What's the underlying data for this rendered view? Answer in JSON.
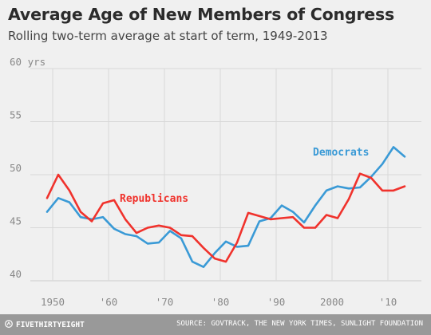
{
  "title": "Average Age of New Members of Congress",
  "subtitle": "Rolling two-term average at start of term, 1949-2013",
  "footer": {
    "brand": "FIVETHIRTYEIGHT",
    "source": "SOURCE: GOVTRACK, THE NEW YORK TIMES, SUNLIGHT FOUNDATION"
  },
  "colors": {
    "democrats": "#3a9ad6",
    "republicans": "#f0322c",
    "grid": "#d8d8d8",
    "background": "#f0f0f0",
    "footer": "#999999"
  },
  "chart_data": {
    "type": "line",
    "title": "Average Age of New Members of Congress",
    "subtitle": "Rolling two-term average at start of term, 1949-2013",
    "xlabel": "",
    "ylabel": "",
    "xlim": [
      1946,
      2016
    ],
    "ylim": [
      40,
      60
    ],
    "yticks": [
      40,
      45,
      50,
      55,
      60
    ],
    "ytick_labels": [
      "40",
      "45",
      "50",
      "55",
      "60 yrs"
    ],
    "xticks": [
      1950,
      1960,
      1970,
      1980,
      1990,
      2000,
      2010
    ],
    "xtick_labels": [
      "1950",
      "'60",
      "'70",
      "'80",
      "'90",
      "2000",
      "'10"
    ],
    "grid": true,
    "legend": "inline labels",
    "x": [
      1949,
      1951,
      1953,
      1955,
      1957,
      1959,
      1961,
      1963,
      1965,
      1967,
      1969,
      1971,
      1973,
      1975,
      1977,
      1979,
      1981,
      1983,
      1985,
      1987,
      1989,
      1991,
      1993,
      1995,
      1997,
      1999,
      2001,
      2003,
      2005,
      2007,
      2009,
      2011,
      2013
    ],
    "series": [
      {
        "name": "Democrats",
        "values": [
          46.5,
          47.8,
          47.4,
          46.0,
          45.8,
          46.0,
          44.9,
          44.4,
          44.2,
          43.5,
          43.6,
          44.7,
          44.0,
          41.8,
          41.3,
          42.6,
          43.7,
          43.2,
          43.3,
          45.6,
          45.9,
          47.1,
          46.5,
          45.5,
          47.1,
          48.5,
          48.9,
          48.7,
          48.8,
          49.8,
          51.0,
          52.6,
          51.7
        ]
      },
      {
        "name": "Republicans",
        "values": [
          47.8,
          50.0,
          48.5,
          46.5,
          45.6,
          47.3,
          47.6,
          45.8,
          44.5,
          45.0,
          45.2,
          45.0,
          44.3,
          44.2,
          43.1,
          42.1,
          41.8,
          43.6,
          46.4,
          46.1,
          45.8,
          45.9,
          46.0,
          45.0,
          45.0,
          46.2,
          45.9,
          47.7,
          50.1,
          49.7,
          48.5,
          48.5,
          48.9
        ]
      }
    ],
    "labels": {
      "democrats": "Democrats",
      "republicans": "Republicans"
    }
  }
}
